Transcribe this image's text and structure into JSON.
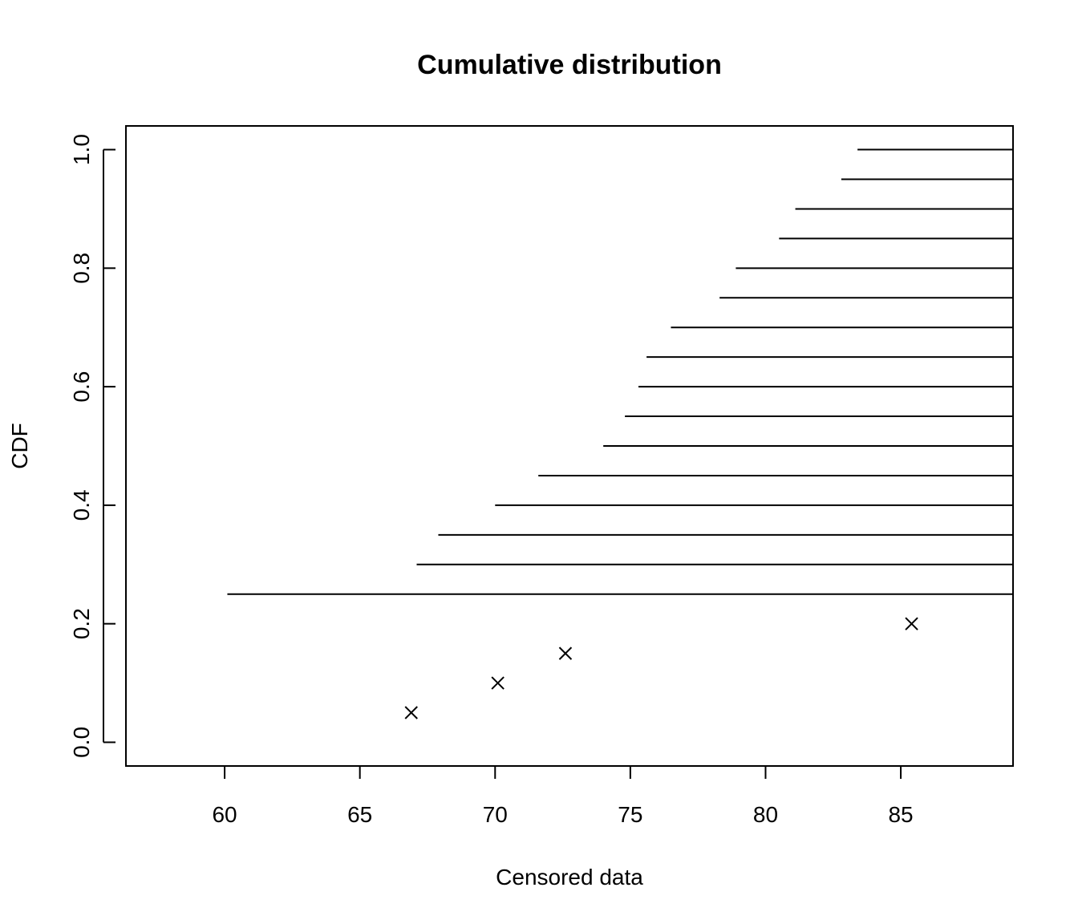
{
  "chart_data": {
    "type": "scatter",
    "title": "Cumulative distribution",
    "xlabel": "Censored data",
    "ylabel": "CDF",
    "xlim": [
      56.35,
      89.15
    ],
    "ylim": [
      -0.04,
      1.04
    ],
    "xticks": [
      60,
      65,
      70,
      75,
      80,
      85
    ],
    "yticks": [
      0.0,
      0.2,
      0.4,
      0.6,
      0.8,
      1.0
    ],
    "xtick_labels": [
      "60",
      "65",
      "70",
      "75",
      "80",
      "85"
    ],
    "ytick_labels": [
      "0.0",
      "0.2",
      "0.4",
      "0.6",
      "0.8",
      "1.0"
    ],
    "grid": false,
    "series": [
      {
        "kind": "points",
        "marker": "x",
        "x": [
          66.9,
          70.1,
          72.6,
          85.4
        ],
        "y": [
          0.05,
          0.1,
          0.15,
          0.2
        ]
      },
      {
        "kind": "right-censored-segments",
        "x_start": [
          60.1,
          67.1,
          67.9,
          70.0,
          71.6,
          74.0,
          74.8,
          75.3,
          75.6,
          76.5,
          78.3,
          78.9,
          80.5,
          81.1,
          82.8,
          83.4
        ],
        "y": [
          0.25,
          0.3,
          0.35,
          0.4,
          0.45,
          0.5,
          0.55,
          0.6,
          0.65,
          0.7,
          0.75,
          0.8,
          0.85,
          0.9,
          0.95,
          1.0
        ]
      }
    ]
  }
}
